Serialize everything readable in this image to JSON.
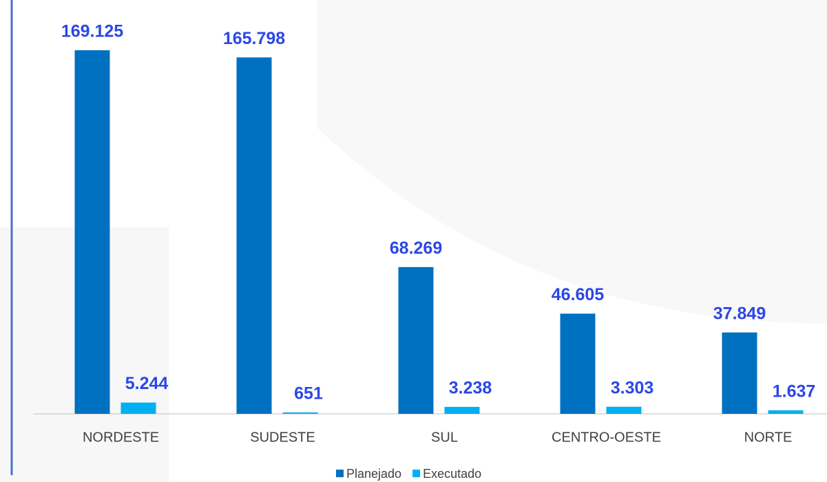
{
  "chart_data": {
    "type": "bar",
    "categories": [
      "NORDESTE",
      "SUDESTE",
      "SUL",
      "CENTRO-OESTE",
      "NORTE"
    ],
    "series": [
      {
        "name": "Planejado",
        "color": "#0070c0",
        "values": [
          169125,
          165798,
          68269,
          46605,
          37849
        ],
        "value_labels": [
          "169.125",
          "165.798",
          "68.269",
          "46.605",
          "37.849"
        ]
      },
      {
        "name": "Executado",
        "color": "#00b0f0",
        "values": [
          5244,
          651,
          3238,
          3303,
          1637
        ],
        "value_labels": [
          "5.244",
          "651",
          "3.238",
          "3.303",
          "1.637"
        ]
      }
    ],
    "legend": "bottom"
  }
}
